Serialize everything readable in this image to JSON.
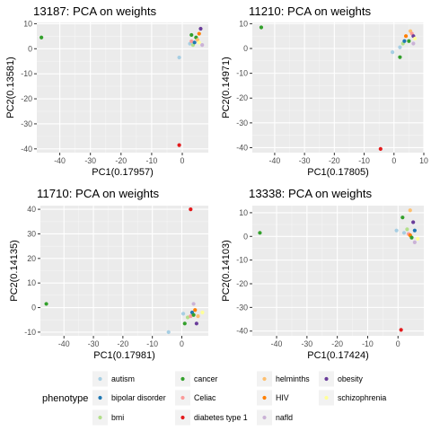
{
  "colors": {
    "autism": "#a6cee3",
    "bipolar disorder": "#1f78b4",
    "bmi": "#b2df8a",
    "cancer": "#33a02c",
    "Celiac": "#fb9a99",
    "diabetes type 1": "#e31a1c",
    "helminths": "#fdbf6f",
    "HIV": "#ff7f00",
    "nafld": "#cab2d6",
    "obesity": "#6a3d9a",
    "schizophrenia": "#ffff99"
  },
  "legend": {
    "title": "phenotype",
    "items": [
      "autism",
      "bipolar disorder",
      "bmi",
      "cancer",
      "Celiac",
      "diabetes type 1",
      "helminths",
      "HIV",
      "nafld",
      "obesity",
      "schizophrenia"
    ]
  },
  "chart_data": [
    {
      "type": "scatter",
      "title": "13187: PCA on weights",
      "xlabel": "PC1(0.17957)",
      "ylabel": "PC2(0.13581)",
      "xlim": [
        -47.5,
        8.5
      ],
      "ylim": [
        -41.5,
        10.5
      ],
      "xticks": [
        -40,
        -30,
        -20,
        -10,
        0
      ],
      "yticks": [
        10,
        0,
        -10,
        -20,
        -30,
        -40
      ],
      "grid": true,
      "points": [
        {
          "x": -46,
          "y": 4.5,
          "group": "cancer"
        },
        {
          "x": -1.0,
          "y": -38.5,
          "group": "diabetes type 1"
        },
        {
          "x": -1.0,
          "y": -3.5,
          "group": "autism"
        },
        {
          "x": 2.5,
          "y": 2.0,
          "group": "autism"
        },
        {
          "x": 3.0,
          "y": 3.0,
          "group": "Celiac"
        },
        {
          "x": 3.0,
          "y": 5.5,
          "group": "cancer"
        },
        {
          "x": 3.5,
          "y": 1.5,
          "group": "bmi"
        },
        {
          "x": 4.0,
          "y": 2.5,
          "group": "bipolar disorder"
        },
        {
          "x": 4.5,
          "y": 4.5,
          "group": "cancer"
        },
        {
          "x": 5.0,
          "y": 3.5,
          "group": "helminths"
        },
        {
          "x": 5.5,
          "y": 6.0,
          "group": "HIV"
        },
        {
          "x": 5.5,
          "y": 2.5,
          "group": "schizophrenia"
        },
        {
          "x": 6.0,
          "y": 8.0,
          "group": "obesity"
        },
        {
          "x": 6.5,
          "y": 1.5,
          "group": "nafld"
        }
      ]
    },
    {
      "type": "scatter",
      "title": "11210: PCA on weights",
      "xlabel": "PC1(0.17805)",
      "ylabel": "PC2(0.14971)",
      "xlim": [
        -47.5,
        10
      ],
      "ylim": [
        -42,
        10.5
      ],
      "xticks": [
        -40,
        -30,
        -20,
        -10,
        0,
        10
      ],
      "yticks": [
        10,
        0,
        -10,
        -20,
        -30,
        -40
      ],
      "grid": true,
      "points": [
        {
          "x": -44.5,
          "y": 8.5,
          "group": "cancer"
        },
        {
          "x": -4.5,
          "y": -40.5,
          "group": "diabetes type 1"
        },
        {
          "x": -0.5,
          "y": -1.5,
          "group": "autism"
        },
        {
          "x": 2.0,
          "y": -3.5,
          "group": "cancer"
        },
        {
          "x": 2.0,
          "y": 0.5,
          "group": "autism"
        },
        {
          "x": 3.0,
          "y": 2.0,
          "group": "bmi"
        },
        {
          "x": 3.5,
          "y": 3.0,
          "group": "bipolar disorder"
        },
        {
          "x": 4.0,
          "y": 5.0,
          "group": "HIV"
        },
        {
          "x": 5.0,
          "y": 3.0,
          "group": "cancer"
        },
        {
          "x": 5.5,
          "y": 7.0,
          "group": "helminths"
        },
        {
          "x": 6.0,
          "y": 6.0,
          "group": "Celiac"
        },
        {
          "x": 6.5,
          "y": 5.0,
          "group": "obesity"
        },
        {
          "x": 7.0,
          "y": 4.0,
          "group": "schizophrenia"
        },
        {
          "x": 6.5,
          "y": 2.0,
          "group": "nafld"
        }
      ]
    },
    {
      "type": "scatter",
      "title": "11710: PCA on weights",
      "xlabel": "PC1(0.17981)",
      "ylabel": "PC2(0.14135)",
      "xlim": [
        -48,
        9
      ],
      "ylim": [
        -11.5,
        41.5
      ],
      "xticks": [
        -40,
        -30,
        -20,
        -10,
        0
      ],
      "yticks": [
        40,
        30,
        20,
        10,
        0,
        -10
      ],
      "grid": true,
      "points": [
        {
          "x": -46,
          "y": 1.5,
          "group": "cancer"
        },
        {
          "x": 3.0,
          "y": 40.0,
          "group": "diabetes type 1"
        },
        {
          "x": -4.5,
          "y": -10.0,
          "group": "autism"
        },
        {
          "x": 0.5,
          "y": -2.5,
          "group": "autism"
        },
        {
          "x": 1.0,
          "y": -6.5,
          "group": "cancer"
        },
        {
          "x": 2.0,
          "y": -4.0,
          "group": "bmi"
        },
        {
          "x": 3.0,
          "y": -3.5,
          "group": "Celiac"
        },
        {
          "x": 3.5,
          "y": -2.0,
          "group": "bipolar disorder"
        },
        {
          "x": 4.0,
          "y": -3.0,
          "group": "cancer"
        },
        {
          "x": 4.5,
          "y": -1.0,
          "group": "HIV"
        },
        {
          "x": 5.0,
          "y": -6.5,
          "group": "obesity"
        },
        {
          "x": 5.5,
          "y": -3.5,
          "group": "helminths"
        },
        {
          "x": 4.0,
          "y": 1.5,
          "group": "nafld"
        },
        {
          "x": 7.0,
          "y": -2.0,
          "group": "schizophrenia"
        }
      ]
    },
    {
      "type": "scatter",
      "title": "13338: PCA on weights",
      "xlabel": "PC1(0.17424)",
      "ylabel": "PC2(0.14103)",
      "xlim": [
        -48,
        8.5
      ],
      "ylim": [
        -42,
        13
      ],
      "xticks": [
        -40,
        -30,
        -20,
        -10,
        0
      ],
      "yticks": [
        10,
        0,
        -10,
        -20,
        -30,
        -40
      ],
      "grid": true,
      "points": [
        {
          "x": -45.5,
          "y": 1.5,
          "group": "cancer"
        },
        {
          "x": 1.0,
          "y": -39.5,
          "group": "diabetes type 1"
        },
        {
          "x": -0.5,
          "y": 2.5,
          "group": "autism"
        },
        {
          "x": 1.5,
          "y": 8.0,
          "group": "cancer"
        },
        {
          "x": 2.0,
          "y": 1.5,
          "group": "autism"
        },
        {
          "x": 3.0,
          "y": 3.0,
          "group": "bmi"
        },
        {
          "x": 3.5,
          "y": 1.0,
          "group": "Celiac"
        },
        {
          "x": 4.0,
          "y": 11.0,
          "group": "helminths"
        },
        {
          "x": 4.0,
          "y": 0.5,
          "group": "HIV"
        },
        {
          "x": 4.5,
          "y": -0.5,
          "group": "cancer"
        },
        {
          "x": 5.0,
          "y": 6.0,
          "group": "obesity"
        },
        {
          "x": 5.5,
          "y": 2.5,
          "group": "bipolar disorder"
        },
        {
          "x": 5.5,
          "y": -2.5,
          "group": "nafld"
        },
        {
          "x": 6.5,
          "y": -1.0,
          "group": "schizophrenia"
        }
      ]
    }
  ]
}
